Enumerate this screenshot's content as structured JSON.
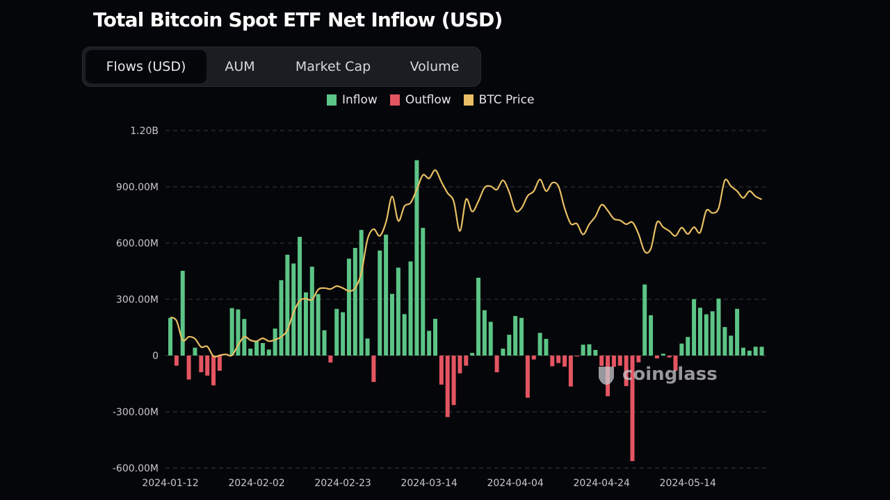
{
  "title": "Total Bitcoin Spot ETF Net Inflow (USD)",
  "tabs": [
    {
      "label": "Flows (USD)",
      "active": true
    },
    {
      "label": "AUM",
      "active": false
    },
    {
      "label": "Market Cap",
      "active": false
    },
    {
      "label": "Volume",
      "active": false
    }
  ],
  "watermark": "coinglass",
  "chart_data": {
    "type": "bar+line",
    "title": "Total Bitcoin Spot ETF Net Inflow (USD)",
    "legend": [
      {
        "name": "Inflow",
        "color": "#5cc486"
      },
      {
        "name": "Outflow",
        "color": "#e45562"
      },
      {
        "name": "BTC Price",
        "color": "#e8bf64"
      }
    ],
    "legend_position": "top-center",
    "y_ticks": [
      "1.20B",
      "900.00M",
      "600.00M",
      "300.00M",
      "0",
      "-300.00M",
      "-600.00M"
    ],
    "y_tick_values_musd": [
      1200,
      900,
      600,
      300,
      0,
      -300,
      -600
    ],
    "ylim_musd": [
      -600,
      1200
    ],
    "x_ticks": [
      "2024-01-12",
      "2024-02-02",
      "2024-02-23",
      "2024-03-14",
      "2024-04-04",
      "2024-04-24",
      "2024-05-14"
    ],
    "grid": "horizontal dashed",
    "categories": [
      "2024-01-12",
      "2024-01-16",
      "2024-01-17",
      "2024-01-18",
      "2024-01-19",
      "2024-01-22",
      "2024-01-23",
      "2024-01-24",
      "2024-01-25",
      "2024-01-26",
      "2024-01-29",
      "2024-01-30",
      "2024-01-31",
      "2024-02-01",
      "2024-02-02",
      "2024-02-05",
      "2024-02-06",
      "2024-02-07",
      "2024-02-08",
      "2024-02-09",
      "2024-02-12",
      "2024-02-13",
      "2024-02-14",
      "2024-02-15",
      "2024-02-16",
      "2024-02-20",
      "2024-02-21",
      "2024-02-22",
      "2024-02-23",
      "2024-02-26",
      "2024-02-27",
      "2024-02-28",
      "2024-02-29",
      "2024-03-01",
      "2024-03-04",
      "2024-03-05",
      "2024-03-06",
      "2024-03-07",
      "2024-03-08",
      "2024-03-11",
      "2024-03-12",
      "2024-03-13",
      "2024-03-14",
      "2024-03-15",
      "2024-03-18",
      "2024-03-19",
      "2024-03-20",
      "2024-03-21",
      "2024-03-22",
      "2024-03-25",
      "2024-03-26",
      "2024-03-27",
      "2024-03-28",
      "2024-04-01",
      "2024-04-02",
      "2024-04-03",
      "2024-04-04",
      "2024-04-05",
      "2024-04-08",
      "2024-04-09",
      "2024-04-10",
      "2024-04-11",
      "2024-04-12",
      "2024-04-15",
      "2024-04-16",
      "2024-04-17",
      "2024-04-18",
      "2024-04-19",
      "2024-04-22",
      "2024-04-23",
      "2024-04-24",
      "2024-04-25",
      "2024-04-26",
      "2024-04-29",
      "2024-04-30",
      "2024-05-01",
      "2024-05-02",
      "2024-05-03",
      "2024-05-06",
      "2024-05-07",
      "2024-05-08",
      "2024-05-09",
      "2024-05-10",
      "2024-05-13",
      "2024-05-14",
      "2024-05-15",
      "2024-05-16",
      "2024-05-17",
      "2024-05-20",
      "2024-05-21",
      "2024-05-22",
      "2024-05-23",
      "2024-05-24",
      "2024-05-28",
      "2024-05-29",
      "2024-05-30",
      "2024-05-31"
    ],
    "series": [
      {
        "name": "Inflow / Outflow",
        "unit": "USD millions",
        "values": [
          201,
          -54,
          452,
          -128,
          42,
          -89,
          -107,
          -159,
          -81,
          0,
          253,
          246,
          195,
          37,
          77,
          67,
          32,
          144,
          402,
          538,
          491,
          633,
          337,
          474,
          328,
          135,
          -37,
          249,
          231,
          517,
          574,
          670,
          91,
          -141,
          560,
          645,
          329,
          469,
          221,
          502,
          1042,
          681,
          132,
          196,
          -155,
          -328,
          -264,
          -95,
          -54,
          14,
          415,
          242,
          180,
          -89,
          37,
          111,
          211,
          201,
          -225,
          -21,
          121,
          89,
          -57,
          -40,
          -59,
          -165,
          -5,
          58,
          60,
          30,
          -55,
          -217,
          -60,
          -54,
          -163,
          -563,
          -36,
          379,
          215,
          -15,
          10,
          -10,
          -81,
          64,
          99,
          301,
          255,
          220,
          236,
          304,
          152,
          106,
          249,
          42,
          26,
          47,
          47
        ]
      },
      {
        "name": "BTC Price",
        "unit": "USD",
        "axis": "hidden secondary",
        "values": [
          42800,
          42100,
          38100,
          38800,
          38400,
          36700,
          36800,
          34800,
          35000,
          35200,
          35000,
          37100,
          38800,
          38100,
          37900,
          38500,
          37900,
          38200,
          38800,
          40200,
          43800,
          46200,
          46600,
          46400,
          48500,
          48800,
          48600,
          49200,
          48800,
          48200,
          48800,
          51900,
          58800,
          60900,
          59500,
          62300,
          67600,
          62600,
          65600,
          66300,
          69000,
          72000,
          71300,
          73000,
          70600,
          68300,
          66600,
          60500,
          67000,
          64500,
          66600,
          69400,
          69700,
          69000,
          70900,
          68500,
          64700,
          65200,
          67700,
          68700,
          71100,
          68700,
          70400,
          69700,
          65200,
          62000,
          62000,
          59800,
          61900,
          63500,
          65900,
          64700,
          63000,
          62700,
          61900,
          62300,
          59900,
          56300,
          56900,
          62300,
          61300,
          60500,
          59500,
          61200,
          59900,
          61300,
          60200,
          64700,
          64200,
          65200,
          70900,
          69700,
          68700,
          67300,
          68700,
          67600,
          67000
        ]
      }
    ]
  }
}
